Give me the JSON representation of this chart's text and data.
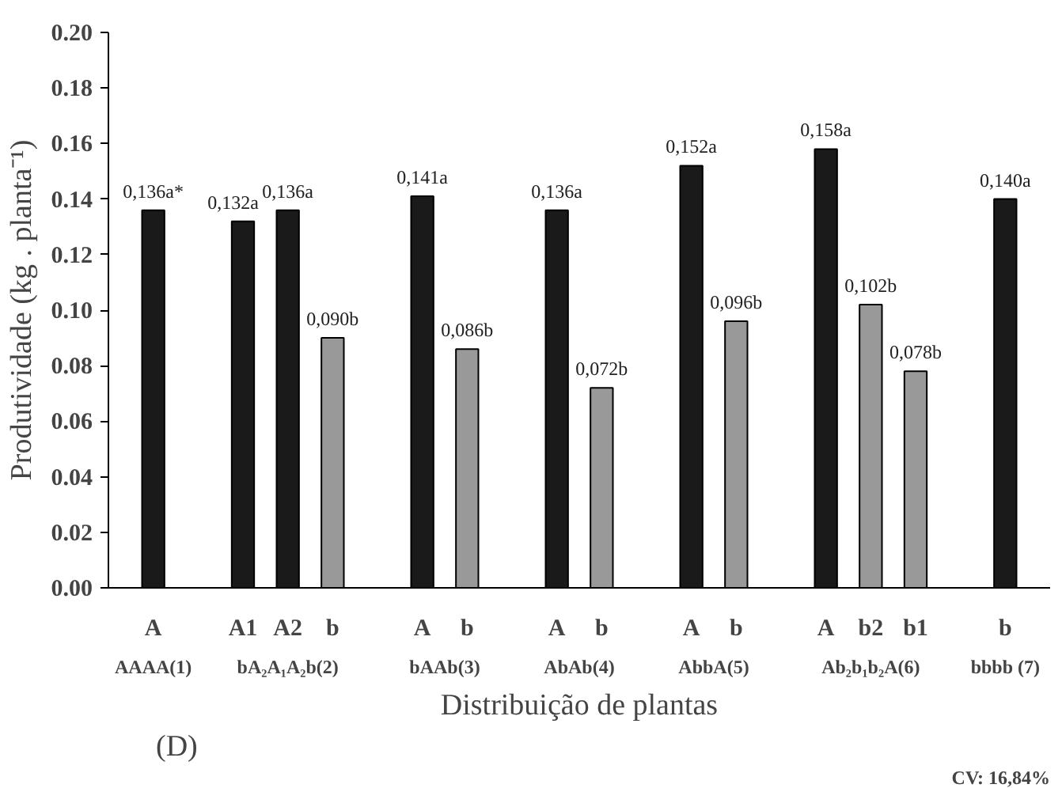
{
  "chart_data": {
    "type": "bar",
    "xlabel": "Distribuição de plantas",
    "ylabel": "Produtividade (kg . planta⁻¹)",
    "categories": [
      "A",
      null,
      "A1",
      "A2",
      "b",
      null,
      "A",
      "b",
      null,
      "A",
      "b",
      null,
      "A",
      "b",
      null,
      "A",
      "b2",
      "b1",
      null,
      "b"
    ],
    "values": [
      0.136,
      null,
      0.132,
      0.136,
      0.09,
      null,
      0.141,
      0.086,
      null,
      0.136,
      0.072,
      null,
      0.152,
      0.096,
      null,
      0.158,
      0.102,
      0.078,
      null,
      0.14
    ],
    "value_labels": [
      "0,136a*",
      null,
      "0,132a",
      "0,136a",
      "0,090b",
      null,
      "0,141a",
      "0,086b",
      null,
      "0,136a",
      "0,072b",
      null,
      "0,152a",
      "0,096b",
      null,
      "0,158a",
      "0,102b",
      "0,078b",
      null,
      "0,140a"
    ],
    "colors": [
      "#1a1a1a",
      null,
      "#1a1a1a",
      "#1a1a1a",
      "#999999",
      null,
      "#1a1a1a",
      "#999999",
      null,
      "#1a1a1a",
      "#999999",
      null,
      "#1a1a1a",
      "#999999",
      null,
      "#1a1a1a",
      "#999999",
      "#999999",
      null,
      "#1a1a1a"
    ],
    "ylim": [
      0,
      0.2
    ],
    "yticks": [
      {
        "value": 0,
        "label": "0.00"
      },
      {
        "value": 0.02,
        "label": "0.02"
      },
      {
        "value": 0.04,
        "label": "0.04"
      },
      {
        "value": 0.06,
        "label": "0.06"
      },
      {
        "value": 0.08,
        "label": "0.08"
      },
      {
        "value": 0.1,
        "label": "0.10"
      },
      {
        "value": 0.12,
        "label": "0.12"
      },
      {
        "value": 0.14,
        "label": "0.14"
      },
      {
        "value": 0.16,
        "label": "0.16"
      },
      {
        "value": 0.18,
        "label": "0.18"
      },
      {
        "value": 0.2,
        "label": "0.20"
      }
    ],
    "grid": false,
    "annotations": [
      "AAAA(1)",
      "bA₂A₁A₂b(2)",
      "bAAb(3)",
      "AbAb(4)",
      "AbbA(5)",
      "Ab₂b₁b₂A(6)",
      "bbbb (7)",
      "(D)",
      "CV: 16,84%"
    ]
  }
}
